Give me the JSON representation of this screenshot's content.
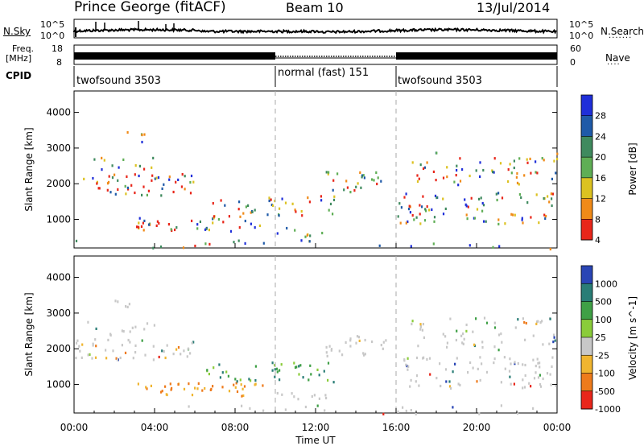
{
  "header": {
    "station": "Prince George (fitACF)",
    "beam": "Beam 10",
    "date": "13/Jul/2014"
  },
  "left_labels": {
    "nsky": "N.Sky",
    "freq_line1": "Freq.",
    "freq_line2": "[MHz]",
    "cpid": "CPID"
  },
  "right_labels": {
    "nsearch": "N.Search",
    "nave": "Nave"
  },
  "noise_panel": {
    "left_ticks": [
      "10^5",
      "10^0"
    ],
    "right_ticks": [
      "10^5",
      "10^0"
    ]
  },
  "freq_panel": {
    "left_ticks": [
      "18",
      "8"
    ],
    "right_ticks": [
      "60",
      "0"
    ]
  },
  "cpid_panel": {
    "segments": [
      {
        "label": "twofsound 3503",
        "start_hour": 0,
        "end_hour": 10
      },
      {
        "label": "normal (fast) 151",
        "start_hour": 10,
        "end_hour": 16
      },
      {
        "label": "twofsound 3503",
        "start_hour": 16,
        "end_hour": 24
      }
    ]
  },
  "chart_data": [
    {
      "type": "heatmap",
      "name": "power",
      "ylabel": "Slant Range [km]",
      "yticks": [
        "4000",
        "3000",
        "2000",
        "1000"
      ],
      "ylim": [
        200,
        4600
      ],
      "colorbar_label": "Power [dB]",
      "colorbar_ticks": [
        "28",
        "24",
        "20",
        "16",
        "12",
        "8",
        "4"
      ],
      "colors": [
        "#1f2fd9",
        "#1f5aa8",
        "#3f8a5e",
        "#5fae55",
        "#dcc221",
        "#f08a18",
        "#e8261a"
      ]
    },
    {
      "type": "heatmap",
      "name": "velocity",
      "ylabel": "Slant Range [km]",
      "yticks": [
        "4000",
        "3000",
        "2000",
        "1000"
      ],
      "ylim": [
        200,
        4600
      ],
      "colorbar_label": "Velocity [m s^-1]",
      "colorbar_ticks": [
        "1000",
        "500",
        "100",
        "25",
        "-25",
        "-100",
        "-500",
        "-1000"
      ],
      "colors": [
        "#2a45b5",
        "#2a7d76",
        "#3fa046",
        "#8acc3a",
        "#c8c8c8",
        "#f0b530",
        "#ee7b1c",
        "#e8261a"
      ]
    }
  ],
  "xaxis": {
    "label": "Time UT",
    "ticks": [
      "00:00",
      "04:00",
      "08:00",
      "12:00",
      "16:00",
      "20:00",
      "00:00"
    ]
  }
}
